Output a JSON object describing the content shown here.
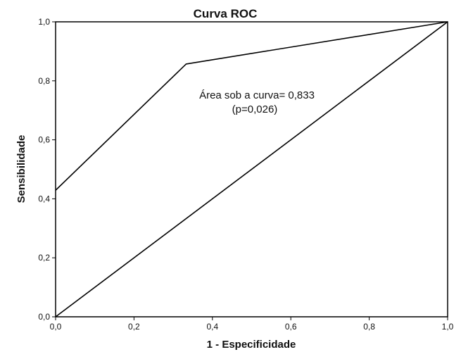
{
  "chart_data": {
    "type": "line",
    "title": "Curva ROC",
    "xlabel": "1 - Especificidade",
    "ylabel": "Sensibilidade",
    "xlim": [
      0,
      1
    ],
    "ylim": [
      0,
      1
    ],
    "xticks": [
      "0,0",
      "0,2",
      "0,4",
      "0,6",
      "0,8",
      "1,0"
    ],
    "yticks": [
      "0,0",
      "0,2",
      "0,4",
      "0,6",
      "0,8",
      "1,0"
    ],
    "grid": false,
    "series": [
      {
        "x": [
          0,
          0.333,
          1
        ],
        "y": [
          0.429,
          0.857,
          1
        ]
      },
      {
        "x": [
          0,
          1
        ],
        "y": [
          0,
          1
        ]
      }
    ],
    "annotation": {
      "line1": "Área sob a curva= 0,833",
      "line2": "(p=0,026)"
    }
  }
}
